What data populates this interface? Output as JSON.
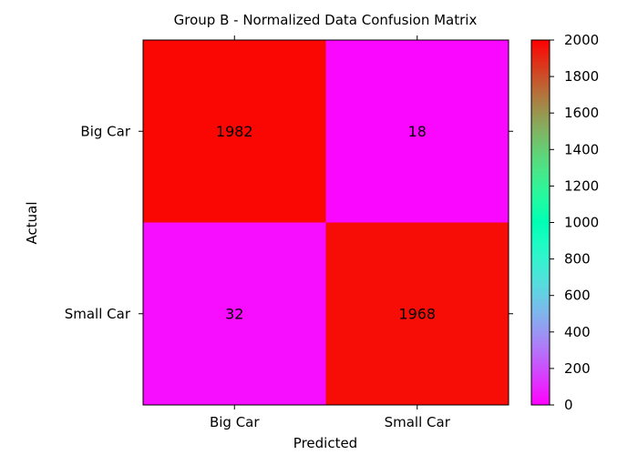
{
  "chart_data": {
    "type": "heatmap",
    "title": "Group B - Normalized Data Confusion Matrix",
    "xlabel": "Predicted",
    "ylabel": "Actual",
    "x_categories": [
      "Big Car",
      "Small Car"
    ],
    "y_categories": [
      "Big Car",
      "Small Car"
    ],
    "values": [
      [
        1982,
        18
      ],
      [
        32,
        1968
      ]
    ],
    "colormap": "rainbow",
    "vmin": 0,
    "vmax": 2000,
    "colorbar_ticks": [
      0,
      200,
      400,
      600,
      800,
      1000,
      1200,
      1400,
      1600,
      1800,
      2000
    ],
    "colors": {
      "low": "#8000ff",
      "high": "#ff0000"
    },
    "grid": false,
    "legend": "colorbar-right"
  }
}
